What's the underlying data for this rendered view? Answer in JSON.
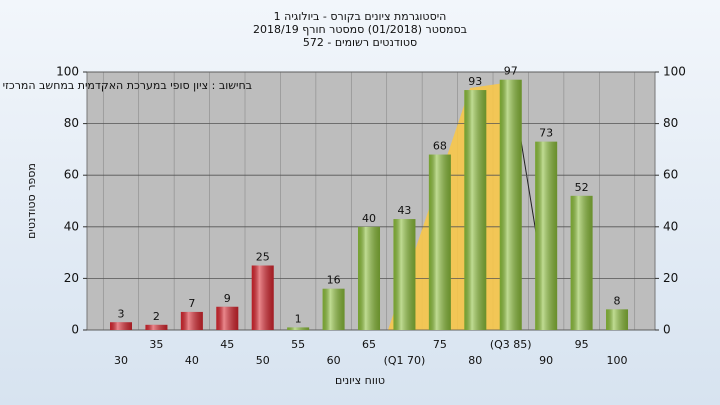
{
  "chart_data": {
    "type": "bar",
    "title": "היסטוגרמת ציונים בקורס - ביולוגיה 1",
    "subtitle": "בסמסטר  (01/2018)  סמסטר חורף  2018/19",
    "subtitle2": "סטודנטים רשומים - 572",
    "annotation": "בחישוב : ציון סופי במערכת האקדמית במחשב המרכזי",
    "ylabel": "מספר סטודנטים",
    "xlabel": "טווח ציונים",
    "categories": [
      "30",
      "35",
      "40",
      "45",
      "50",
      "55",
      "60",
      "65",
      "(Q1 70)",
      "75",
      "80",
      "(Q3 85)",
      "90",
      "95",
      "100"
    ],
    "values": [
      3,
      2,
      7,
      9,
      25,
      1,
      16,
      40,
      43,
      68,
      93,
      97,
      73,
      52,
      8
    ],
    "colors": [
      "#d9252e",
      "#d9252e",
      "#d9252e",
      "#d9252e",
      "#d9252e",
      "#8cbf3a",
      "#8cbf3a",
      "#8cbf3a",
      "#8cbf3a",
      "#8cbf3a",
      "#8cbf3a",
      "#8cbf3a",
      "#8cbf3a",
      "#8cbf3a",
      "#8cbf3a"
    ],
    "ylim": [
      0,
      100
    ],
    "yticks": [
      0,
      20,
      40,
      60,
      80,
      100
    ],
    "grid": true
  }
}
